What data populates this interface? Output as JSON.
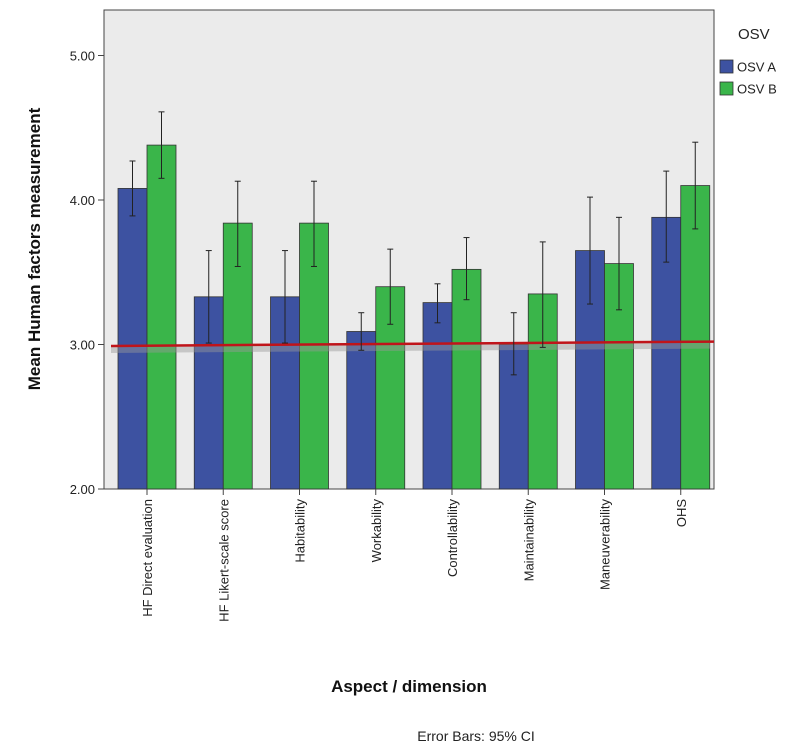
{
  "chart_data": {
    "type": "bar",
    "title": "",
    "xlabel": "Aspect / dimension",
    "ylabel": "Mean Human factors measurement",
    "ylim": [
      2.0,
      5.0
    ],
    "yticks": [
      "2.00",
      "3.00",
      "4.00",
      "5.00"
    ],
    "categories": [
      "HF Direct evaluation",
      "HF Likert-scale score",
      "Habitability",
      "Workability",
      "Controllability",
      "Maintainability",
      "Maneuverability",
      "OHS"
    ],
    "series": [
      {
        "name": "OSV A",
        "color": "#3d52a1",
        "values": [
          4.08,
          3.33,
          3.33,
          3.09,
          3.29,
          3.0,
          3.65,
          3.88
        ],
        "ci_lower": [
          3.89,
          3.01,
          3.01,
          2.96,
          3.15,
          2.79,
          3.28,
          3.57
        ],
        "ci_upper": [
          4.27,
          3.65,
          3.65,
          3.22,
          3.42,
          3.22,
          4.02,
          4.2
        ]
      },
      {
        "name": "OSV B",
        "color": "#3ab54a",
        "values": [
          4.38,
          3.84,
          3.84,
          3.4,
          3.52,
          3.35,
          3.56,
          4.1
        ],
        "ci_lower": [
          4.15,
          3.54,
          3.54,
          3.14,
          3.31,
          2.98,
          3.24,
          3.8
        ],
        "ci_upper": [
          4.61,
          4.13,
          4.13,
          3.66,
          3.74,
          3.71,
          3.88,
          4.4
        ]
      }
    ],
    "reference_line": {
      "y_start": 2.99,
      "y_end": 3.02,
      "color": "#c0141a"
    },
    "plot_background": "#ebebeb",
    "grid": false,
    "legend": {
      "title": "OSV",
      "position": "right"
    },
    "footnote": "Error Bars: 95% CI"
  }
}
